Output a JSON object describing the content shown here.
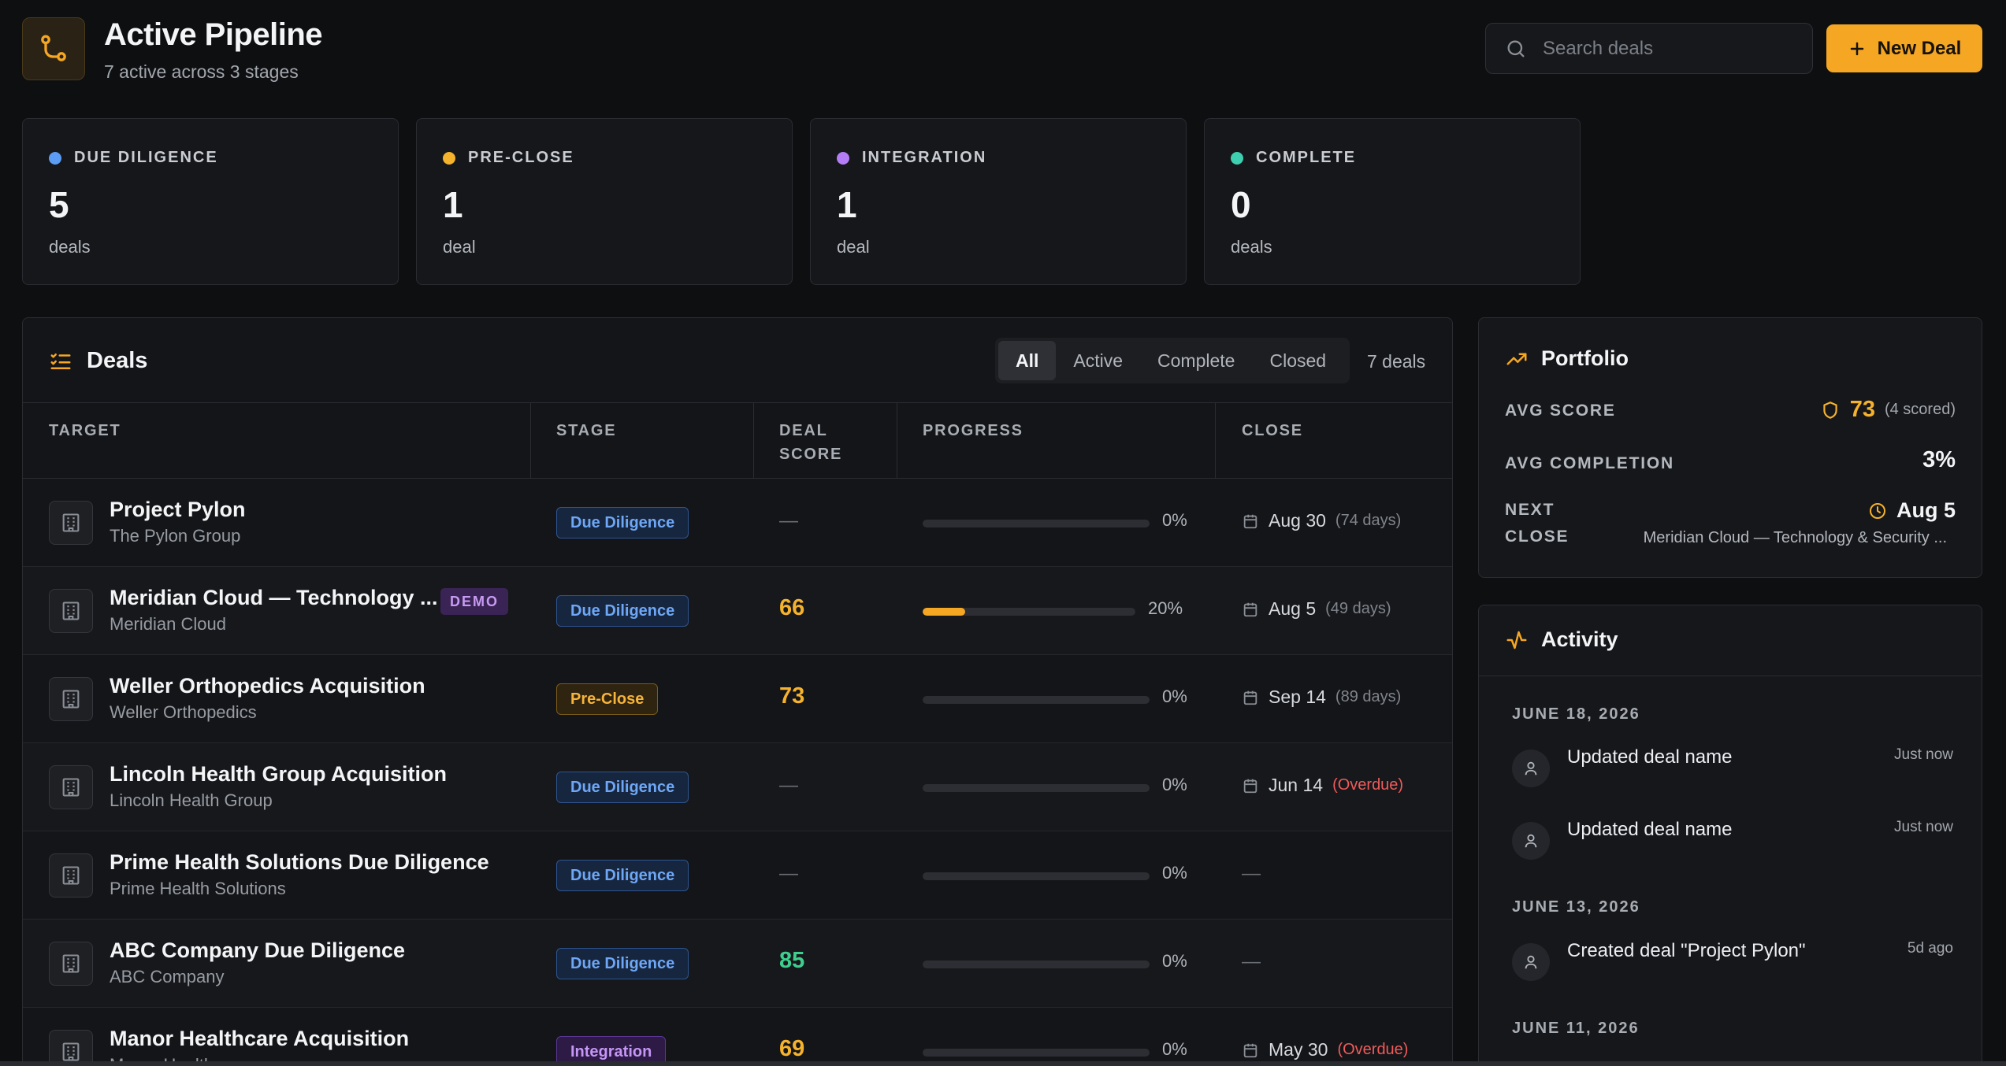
{
  "header": {
    "title": "Active Pipeline",
    "subtitle": "7 active across 3 stages",
    "logo_icon": "git-branch-icon",
    "search_placeholder": "Search deals",
    "new_deal_label": "New Deal"
  },
  "stages": [
    {
      "name": "DUE DILIGENCE",
      "count": "5",
      "unit": "deals",
      "color": "#5b9cf5"
    },
    {
      "name": "PRE-CLOSE",
      "count": "1",
      "unit": "deal",
      "color": "#f5b22d"
    },
    {
      "name": "INTEGRATION",
      "count": "1",
      "unit": "deal",
      "color": "#b57df5"
    },
    {
      "name": "COMPLETE",
      "count": "0",
      "unit": "deals",
      "color": "#3ecfb0"
    }
  ],
  "deals": {
    "title": "Deals",
    "filters": [
      "All",
      "Active",
      "Complete",
      "Closed"
    ],
    "active_filter": "All",
    "count_label": "7 deals",
    "columns": {
      "target": "TARGET",
      "stage": "STAGE",
      "deal_score_1": "DEAL",
      "deal_score_2": "SCORE",
      "progress": "PROGRESS",
      "close": "CLOSE"
    },
    "rows": [
      {
        "name": "Project Pylon",
        "company": "The Pylon Group",
        "badge": "",
        "stage": "Due Diligence",
        "stage_kind": "dd",
        "score": "—",
        "score_kind": "empty",
        "progress": 0,
        "progress_label": "0%",
        "close_date": "Aug 30",
        "close_rel": "(74 days)",
        "overdue": false
      },
      {
        "name": "Meridian Cloud — Technology ...",
        "company": "Meridian Cloud",
        "badge": "DEMO",
        "stage": "Due Diligence",
        "stage_kind": "dd",
        "score": "66",
        "score_kind": "yellow",
        "progress": 20,
        "progress_label": "20%",
        "close_date": "Aug 5",
        "close_rel": "(49 days)",
        "overdue": false
      },
      {
        "name": "Weller Orthopedics Acquisition",
        "company": "Weller Orthopedics",
        "badge": "",
        "stage": "Pre-Close",
        "stage_kind": "pc",
        "score": "73",
        "score_kind": "yellow",
        "progress": 0,
        "progress_label": "0%",
        "close_date": "Sep 14",
        "close_rel": "(89 days)",
        "overdue": false
      },
      {
        "name": "Lincoln Health Group Acquisition",
        "company": "Lincoln Health Group",
        "badge": "",
        "stage": "Due Diligence",
        "stage_kind": "dd",
        "score": "—",
        "score_kind": "empty",
        "progress": 0,
        "progress_label": "0%",
        "close_date": "Jun 14",
        "close_rel": "(Overdue)",
        "overdue": true
      },
      {
        "name": "Prime Health Solutions Due Diligence",
        "company": "Prime Health Solutions",
        "badge": "",
        "stage": "Due Diligence",
        "stage_kind": "dd",
        "score": "—",
        "score_kind": "empty",
        "progress": 0,
        "progress_label": "0%",
        "close_date": "",
        "close_rel": "",
        "close_empty": "—",
        "overdue": false
      },
      {
        "name": "ABC Company Due Diligence",
        "company": "ABC Company",
        "badge": "",
        "stage": "Due Diligence",
        "stage_kind": "dd",
        "score": "85",
        "score_kind": "green",
        "progress": 0,
        "progress_label": "0%",
        "close_date": "",
        "close_rel": "",
        "close_empty": "—",
        "overdue": false
      },
      {
        "name": "Manor Healthcare Acquisition",
        "company": "Manor Healthcare",
        "badge": "",
        "stage": "Integration",
        "stage_kind": "int",
        "score": "69",
        "score_kind": "yellow",
        "progress": 0,
        "progress_label": "0%",
        "close_date": "May 30",
        "close_rel": "(Overdue)",
        "overdue": true
      }
    ]
  },
  "portfolio": {
    "title": "Portfolio",
    "avg_score_label": "AVG SCORE",
    "avg_score_value": "73",
    "avg_score_note": "(4 scored)",
    "avg_completion_label": "AVG COMPLETION",
    "avg_completion_value": "3%",
    "next_close_label_1": "NEXT",
    "next_close_label_2": "CLOSE",
    "next_close_value": "Aug 5",
    "next_close_sub": "Meridian Cloud — Technology & Security ..."
  },
  "activity": {
    "title": "Activity",
    "groups": [
      {
        "date": "JUNE 18, 2026",
        "items": [
          {
            "text": "Updated deal name",
            "time": "Just now"
          },
          {
            "text": "Updated deal name",
            "time": "Just now"
          }
        ]
      },
      {
        "date": "JUNE 13, 2026",
        "items": [
          {
            "text": "Created deal \"Project Pylon\"",
            "time": "5d ago"
          }
        ]
      },
      {
        "date": "JUNE 11, 2026",
        "items": []
      }
    ]
  },
  "colors": {
    "accent": "#f5a623",
    "background": "#0e0f11",
    "panel": "#16171a"
  }
}
